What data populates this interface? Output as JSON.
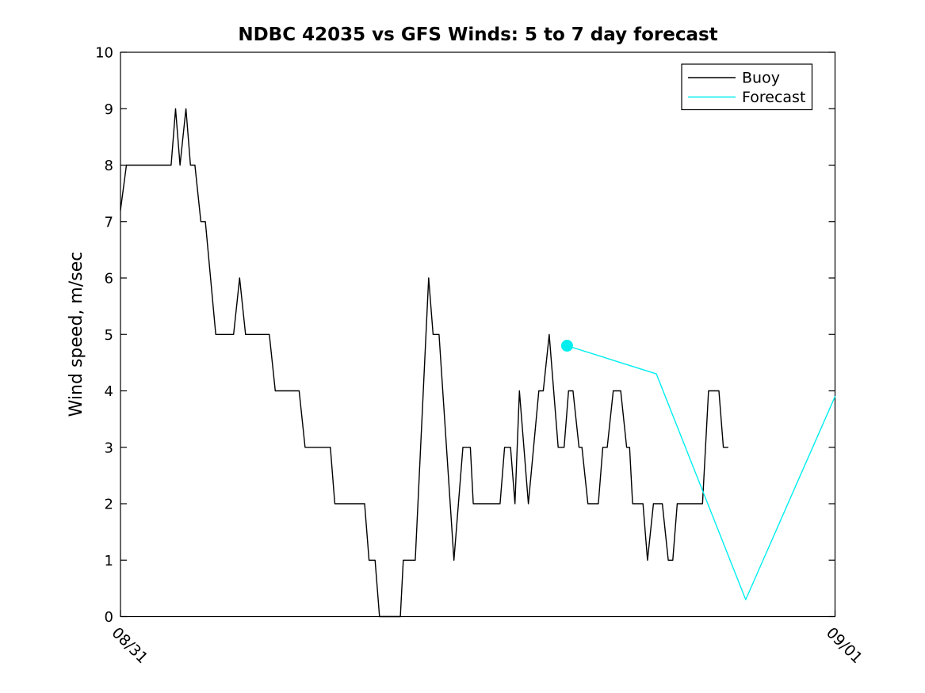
{
  "title": "NDBC 42035 vs GFS Winds: 5 to 7 day forecast",
  "y_axis_label": "Wind speed, m/sec",
  "colors": {
    "buoy": "#000000",
    "forecast": "#00EEEE",
    "axis": "#000000",
    "background": "#FFFFFF"
  },
  "legend": {
    "position": "top-right",
    "items": [
      {
        "label": "Buoy",
        "color": "#000000"
      },
      {
        "label": "Forecast",
        "color": "#00EEEE"
      }
    ]
  },
  "chart_data": {
    "type": "line",
    "title": "NDBC 42035 vs GFS Winds: 5 to 7 day forecast",
    "xlabel": "",
    "ylabel": "Wind speed, m/sec",
    "x_unit": "hours after 08/31 00:00",
    "xlim": [
      0,
      24
    ],
    "ylim": [
      0,
      10
    ],
    "yticks": [
      0,
      1,
      2,
      3,
      4,
      5,
      6,
      7,
      8,
      9,
      10
    ],
    "xticks": [
      {
        "x": 0,
        "label": "08/31"
      },
      {
        "x": 24,
        "label": "09/01"
      }
    ],
    "grid": false,
    "legend_position": "top-right",
    "series": [
      {
        "name": "Buoy",
        "color": "#000000",
        "marker": "none",
        "x": [
          0.0,
          0.2,
          1.7,
          1.85,
          2.0,
          2.2,
          2.35,
          2.5,
          2.7,
          2.85,
          3.2,
          3.8,
          4.0,
          4.2,
          5.0,
          5.2,
          6.0,
          6.2,
          7.05,
          7.2,
          8.2,
          8.35,
          8.55,
          8.7,
          9.4,
          9.5,
          9.9,
          10.35,
          10.5,
          10.7,
          11.2,
          11.5,
          11.75,
          11.85,
          12.75,
          12.9,
          13.1,
          13.25,
          13.4,
          13.7,
          14.05,
          14.2,
          14.4,
          14.7,
          14.9,
          15.05,
          15.2,
          15.4,
          15.5,
          15.7,
          16.05,
          16.2,
          16.35,
          16.55,
          16.8,
          17.0,
          17.1,
          17.2,
          17.55,
          17.7,
          17.9,
          18.2,
          18.4,
          18.55,
          18.7,
          19.55,
          19.75,
          20.1,
          20.25,
          20.4
        ],
        "y": [
          7.2,
          8,
          8,
          9,
          8,
          9,
          8,
          8,
          7,
          7,
          5,
          5,
          6,
          5,
          5,
          4,
          4,
          3,
          3,
          2,
          2,
          1,
          1,
          0,
          0,
          1,
          1,
          6,
          5,
          5,
          1,
          3,
          3,
          2,
          2,
          3,
          3,
          2,
          4,
          2,
          4,
          4,
          5,
          3,
          3,
          4,
          4,
          3,
          3,
          2,
          2,
          3,
          3,
          4,
          4,
          3,
          3,
          2,
          2,
          1,
          2,
          2,
          1,
          1,
          2,
          2,
          4,
          4,
          3,
          3
        ]
      },
      {
        "name": "Forecast",
        "color": "#00EEEE",
        "marker": "circle-on-first-point",
        "x": [
          15,
          18,
          21,
          24
        ],
        "y": [
          4.8,
          4.3,
          0.3,
          3.9
        ]
      }
    ]
  }
}
